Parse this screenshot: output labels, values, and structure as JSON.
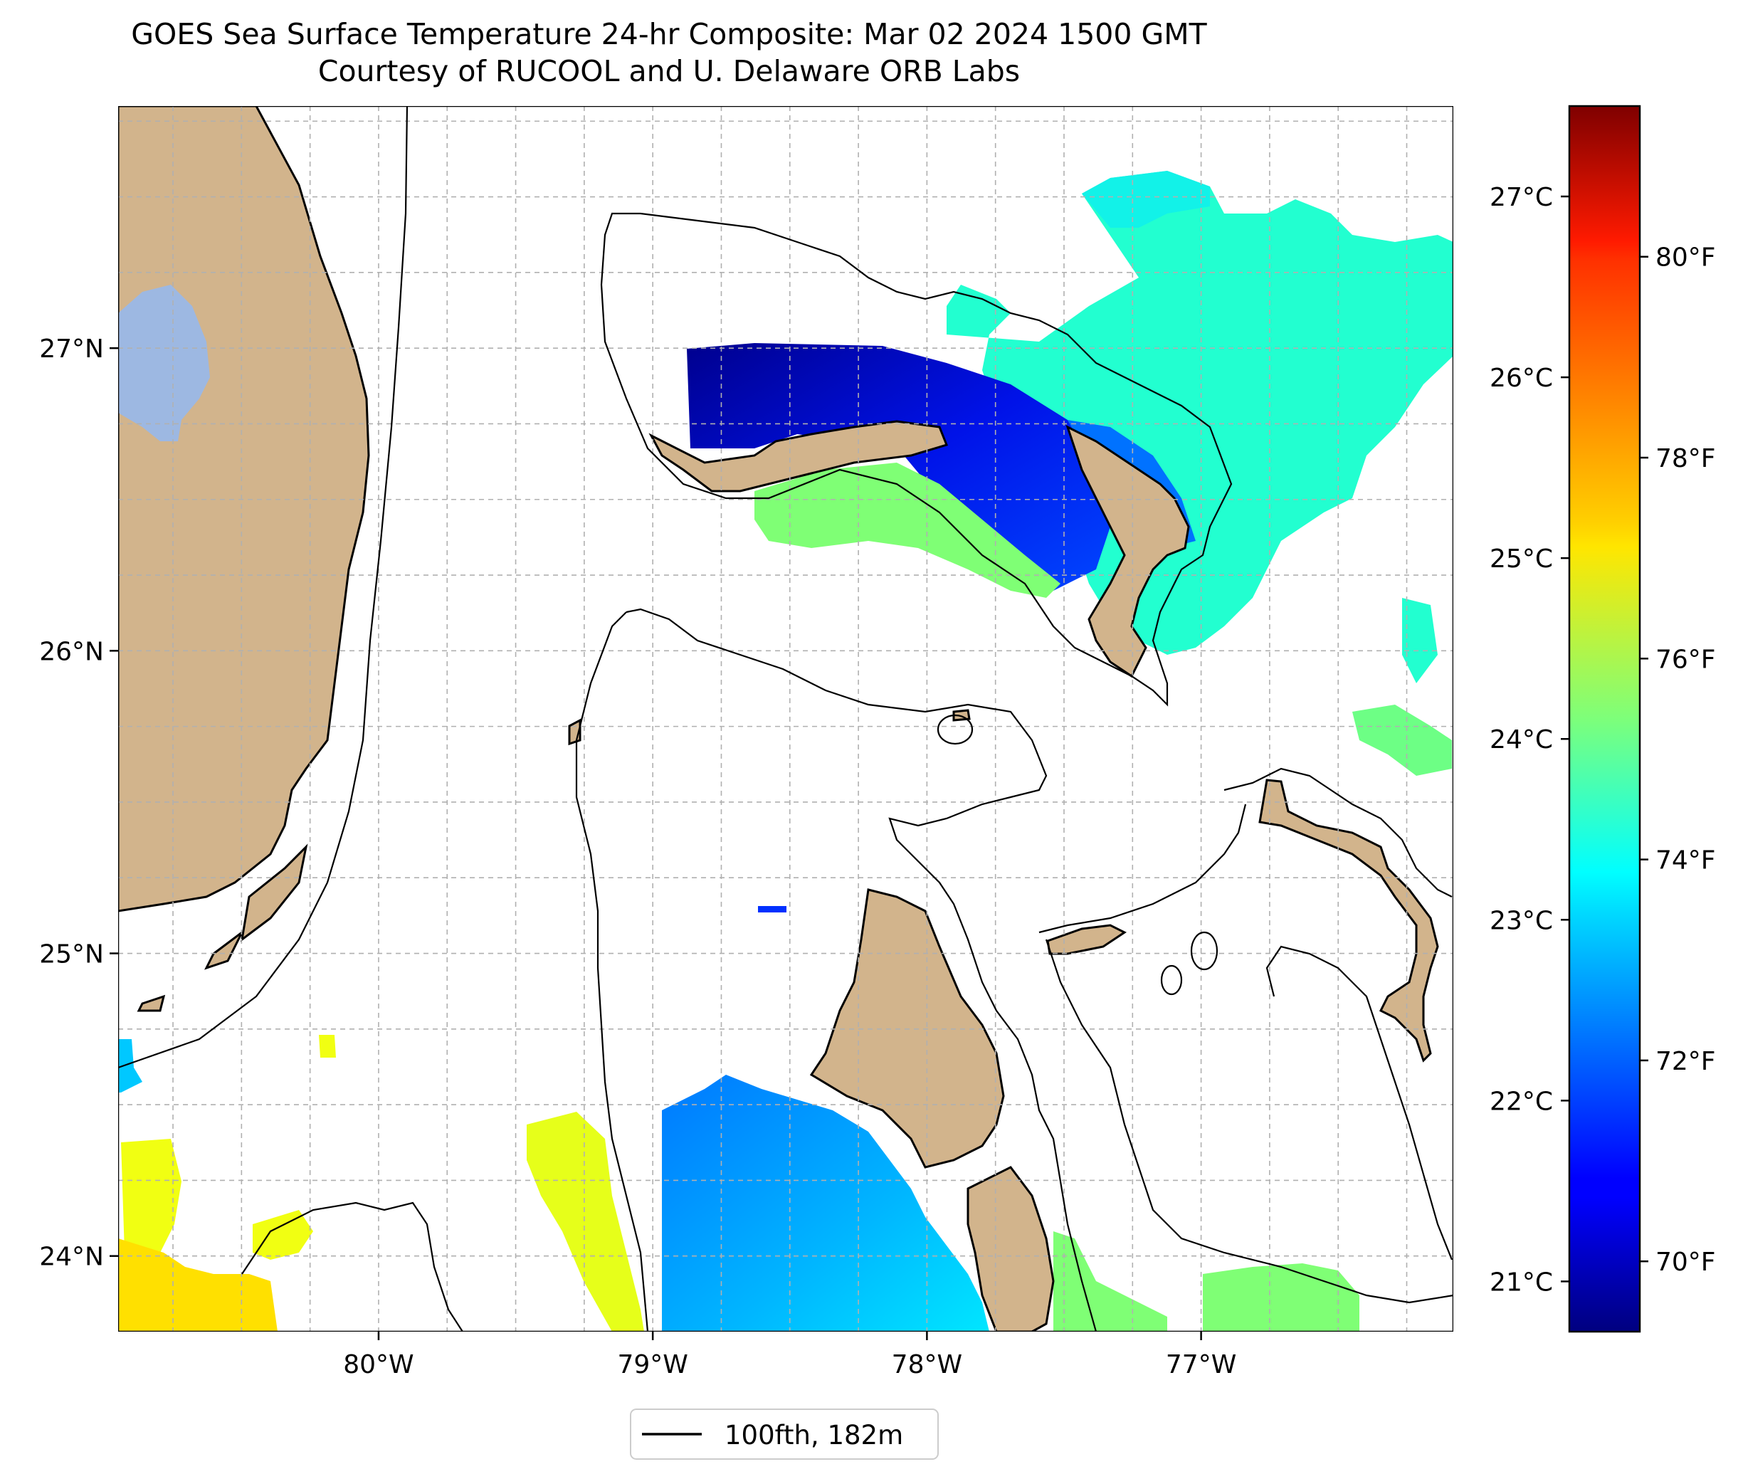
{
  "title": {
    "line1": "GOES Sea Surface Temperature 24-hr Composite: Mar 02 2024 1500 GMT",
    "line2": "Courtesy of RUCOOL and U. Delaware ORB Labs"
  },
  "map": {
    "lon_ticks": [
      "80°W",
      "79°W",
      "78°W",
      "77°W"
    ],
    "lat_ticks": [
      "27°N",
      "26°N",
      "25°N",
      "24°N"
    ],
    "extent": {
      "lon_min": -80.95,
      "lon_max": -76.08,
      "lat_min": 23.75,
      "lat_max": 27.8
    },
    "land_color": "#d2b48c",
    "lake_color": "#9db8e2",
    "gridlines": true
  },
  "colorbar": {
    "celsius_ticks": [
      "27°C",
      "26°C",
      "25°C",
      "24°C",
      "23°C",
      "22°C",
      "21°C"
    ],
    "fahrenheit_ticks": [
      "80°F",
      "78°F",
      "76°F",
      "74°F",
      "72°F",
      "70°F"
    ],
    "colormap": "jet",
    "range_f": [
      69.3,
      81.5
    ]
  },
  "legend": {
    "label": "100fth, 182m"
  }
}
